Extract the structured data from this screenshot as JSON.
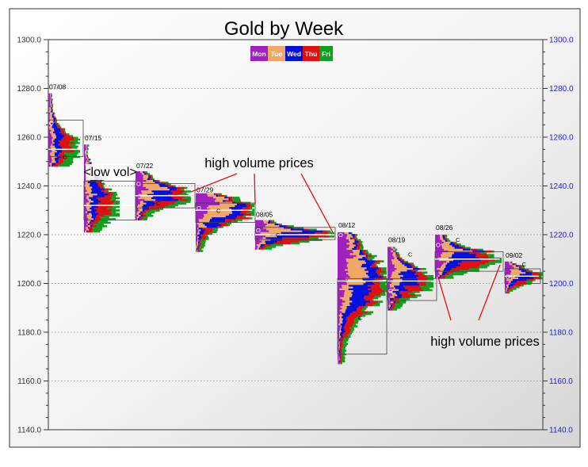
{
  "chart_data": {
    "type": "market-profile",
    "title": "Gold by Week",
    "legend": [
      {
        "label": "Mon",
        "color": "#a020c0"
      },
      {
        "label": "Tue",
        "color": "#f0a868"
      },
      {
        "label": "Wed",
        "color": "#0010e0"
      },
      {
        "label": "Thu",
        "color": "#e01010"
      },
      {
        "label": "Fri",
        "color": "#10a020"
      }
    ],
    "legend_placement": "top-center",
    "y_axis": {
      "min": 1140.0,
      "max": 1300.0,
      "ticks": [
        "1140.0",
        "1160.0",
        "1180.0",
        "1200.0",
        "1220.0",
        "1240.0",
        "1260.0",
        "1280.0",
        "1300.0"
      ],
      "right_tick_color": "#2222cc"
    },
    "grid": true,
    "open_marker": "O",
    "close_marker": "C",
    "weeks": [
      {
        "label": "07/08",
        "high": 1278,
        "low": 1248,
        "poc": 1255,
        "va_high": 1267,
        "va_low": 1252,
        "close": 1252,
        "open": 1266
      },
      {
        "label": "07/15",
        "high": 1257,
        "low": 1221,
        "poc": 1232,
        "va_high": 1242,
        "va_low": 1226,
        "close": 1242,
        "open": 1254
      },
      {
        "label": "07/22",
        "high": 1246,
        "low": 1226,
        "poc": 1236,
        "va_high": 1241,
        "va_low": 1231,
        "close": 1233,
        "open": 1241
      },
      {
        "label": "07/29",
        "high": 1237,
        "low": 1213,
        "poc": 1230,
        "va_high": 1233,
        "va_low": 1225,
        "close": 1230,
        "open": 1231
      },
      {
        "label": "08/05",
        "high": 1226,
        "low": 1214,
        "poc": 1220,
        "va_high": 1223,
        "va_low": 1218,
        "close": 1220,
        "open": 1222
      },
      {
        "label": "08/12",
        "high": 1221,
        "low": 1167,
        "poc": 1201,
        "va_high": 1202,
        "va_low": 1171,
        "close": 1186,
        "open": 1220
      },
      {
        "label": "08/19",
        "high": 1215,
        "low": 1189,
        "poc": 1201,
        "va_high": 1202,
        "va_low": 1193,
        "close": 1212,
        "open": 1197
      },
      {
        "label": "08/26",
        "high": 1220,
        "low": 1202,
        "poc": 1210,
        "va_high": 1213,
        "va_low": 1205,
        "close": 1218,
        "open": 1216
      },
      {
        "label": "09/02",
        "high": 1209,
        "low": 1196,
        "poc": 1203,
        "va_high": 1206,
        "va_low": 1200,
        "close": 1208,
        "open": 1203
      }
    ],
    "annotations": [
      {
        "text": "high volume prices",
        "pointers": [
          [
            3,
            1236
          ],
          [
            4,
            1231
          ],
          [
            5,
            1220
          ]
        ]
      },
      {
        "text": "<low vol>"
      },
      {
        "text": "high volume prices",
        "pointers": [
          [
            7,
            1203
          ],
          [
            8,
            1207
          ]
        ]
      }
    ]
  }
}
